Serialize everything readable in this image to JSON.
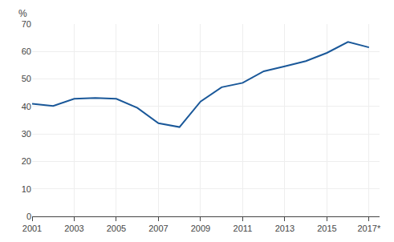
{
  "chart_data": {
    "type": "line",
    "x": [
      2001,
      2002,
      2003,
      2004,
      2005,
      2006,
      2007,
      2008,
      2009,
      2010,
      2011,
      2012,
      2013,
      2014,
      2015,
      2016,
      2017
    ],
    "values": [
      41.0,
      40.2,
      42.8,
      43.1,
      42.8,
      39.5,
      33.9,
      32.5,
      41.8,
      47.0,
      48.6,
      52.8,
      54.6,
      56.5,
      59.5,
      63.5,
      61.5
    ],
    "color": "#1a5899",
    "ylabel": "%",
    "xlim": [
      2001,
      2017.5
    ],
    "xticks": [
      2001,
      2003,
      2005,
      2007,
      2009,
      2011,
      2013,
      2015,
      {
        "value": 2017,
        "label": "2017*"
      }
    ],
    "ylim": [
      0,
      70
    ],
    "yticks": [
      0,
      10,
      20,
      30,
      40,
      50,
      60,
      70
    ],
    "grid": true
  }
}
